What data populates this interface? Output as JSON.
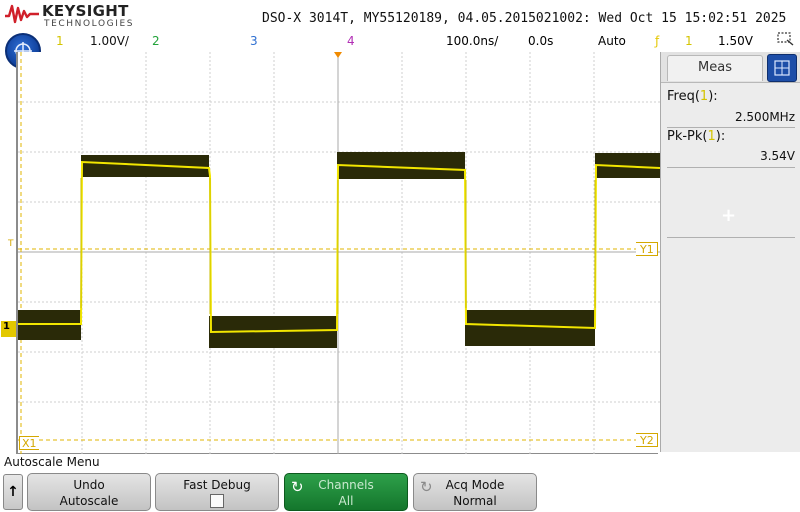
{
  "header": {
    "brand": "KEYSIGHT",
    "brand_sub": "TECHNOLOGIES",
    "title": "DSO-X 3014T, MY55120189, 04.05.2015021002: Wed Oct 15 15:02:51 2025"
  },
  "status": {
    "ch1_num": "1",
    "ch1_scale": "1.00V/",
    "ch2_num": "2",
    "ch3_num": "3",
    "ch4_num": "4",
    "timebase": "100.0ns/",
    "delay": "0.0s",
    "trigger_mode": "Auto",
    "trigger_icon": "ƒ",
    "trigger_source": "1",
    "trigger_level": "1.50V"
  },
  "markers": {
    "y1": "Y1",
    "y2": "Y2",
    "x1": "X1",
    "ch1": "1",
    "trigger_level": "T"
  },
  "panel": {
    "tab_label": "Meas",
    "measurements": [
      {
        "label": "Freq(",
        "mark": "1",
        "suffix": "):",
        "value": "2.500MHz"
      },
      {
        "label": "Pk-Pk(",
        "mark": "1",
        "suffix": "):",
        "value": "3.54V"
      }
    ],
    "add_label": "+"
  },
  "menu": {
    "title": "Autoscale Menu",
    "back_label": "↑",
    "softkeys": [
      {
        "line1": "Undo",
        "line2": "Autoscale"
      },
      {
        "line1": "Fast Debug",
        "line2": ""
      },
      {
        "line1": "Channels",
        "line2": "All"
      },
      {
        "line1": "Acq Mode",
        "line2": "Normal"
      }
    ]
  },
  "colors": {
    "ch1": "#e3d600",
    "ch2": "#22a33a",
    "ch3": "#2e6fd1",
    "ch4": "#b22fb5",
    "marker": "#d4a800",
    "active_key": "#1f8a3a"
  }
}
